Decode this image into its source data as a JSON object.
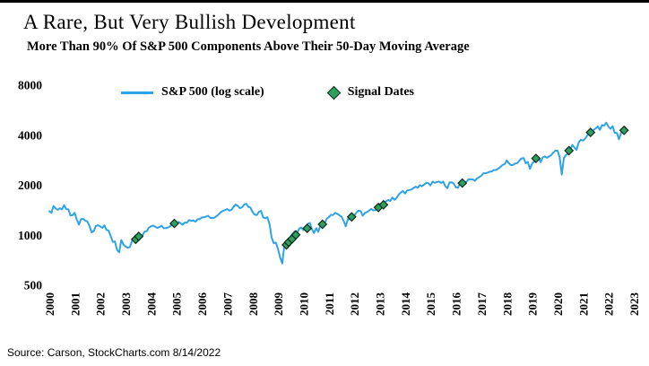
{
  "footer": {
    "source": "Source: Carson, StockCharts.com 8/14/2022"
  },
  "colors": {
    "line": "#2FA3E8",
    "signal_fill": "#2E9F5F",
    "signal_stroke": "#0a2a1a",
    "text": "#000000",
    "background": "#ffffff"
  },
  "chart_data": {
    "type": "line",
    "title": "A Rare, But Very Bullish Development",
    "subtitle": "More Than 90% Of S&P 500 Components Above Their 50-Day Moving Average",
    "y_scale": "log",
    "ylim": [
      500,
      8000
    ],
    "y_ticks": [
      8000,
      4000,
      2000,
      1000,
      500
    ],
    "xlim": [
      2000,
      2023
    ],
    "x_ticks": [
      2000,
      2001,
      2002,
      2003,
      2004,
      2005,
      2006,
      2007,
      2008,
      2009,
      2010,
      2011,
      2012,
      2013,
      2014,
      2015,
      2016,
      2017,
      2018,
      2019,
      2020,
      2021,
      2022,
      2023
    ],
    "grid": false,
    "legend_position": "top-left-inside",
    "series": [
      {
        "name": "S&P 500 (log scale)",
        "color": "#2FA3E8",
        "x_start": 2000,
        "x_step_years": 0.0833333,
        "values": [
          1394,
          1366,
          1499,
          1452,
          1421,
          1455,
          1431,
          1518,
          1437,
          1429,
          1315,
          1320,
          1366,
          1240,
          1160,
          1249,
          1256,
          1224,
          1211,
          1134,
          1041,
          1060,
          1139,
          1148,
          1130,
          1107,
          1147,
          1077,
          1067,
          990,
          911,
          916,
          815,
          790,
          936,
          880,
          856,
          841,
          848,
          917,
          964,
          975,
          990,
          1008,
          996,
          1051,
          1058,
          1112,
          1131,
          1145,
          1126,
          1107,
          1121,
          1141,
          1102,
          1104,
          1115,
          1130,
          1174,
          1212,
          1181,
          1204,
          1181,
          1157,
          1192,
          1191,
          1234,
          1220,
          1229,
          1207,
          1249,
          1248,
          1280,
          1281,
          1295,
          1311,
          1270,
          1270,
          1277,
          1304,
          1336,
          1378,
          1401,
          1418,
          1438,
          1407,
          1421,
          1482,
          1531,
          1503,
          1455,
          1474,
          1527,
          1549,
          1481,
          1468,
          1379,
          1331,
          1323,
          1386,
          1400,
          1280,
          1267,
          1283,
          1166,
          969,
          896,
          903,
          826,
          735,
          676,
          873,
          919,
          919,
          987,
          1021,
          1057,
          1036,
          1096,
          1115,
          1074,
          1104,
          1169,
          1187,
          1089,
          1031,
          1102,
          1049,
          1141,
          1183,
          1181,
          1258,
          1286,
          1327,
          1326,
          1364,
          1345,
          1321,
          1292,
          1219,
          1131,
          1253,
          1247,
          1258,
          1312,
          1366,
          1408,
          1398,
          1310,
          1362,
          1379,
          1407,
          1441,
          1412,
          1416,
          1426,
          1498,
          1515,
          1569,
          1598,
          1631,
          1606,
          1686,
          1633,
          1682,
          1757,
          1806,
          1848,
          1783,
          1859,
          1872,
          1884,
          1924,
          1960,
          1931,
          2003,
          1972,
          2018,
          2068,
          2059,
          1995,
          2105,
          2068,
          2086,
          2107,
          2063,
          2104,
          1972,
          1920,
          2079,
          2080,
          2044,
          1940,
          1932,
          2060,
          2065,
          2097,
          2099,
          2174,
          2171,
          2168,
          2126,
          2199,
          2239,
          2279,
          2364,
          2363,
          2384,
          2412,
          2423,
          2470,
          2472,
          2519,
          2575,
          2648,
          2674,
          2824,
          2714,
          2641,
          2648,
          2705,
          2718,
          2816,
          2902,
          2914,
          2712,
          2760,
          2507,
          2704,
          2784,
          2834,
          2946,
          2752,
          2942,
          2980,
          2926,
          2977,
          3038,
          3141,
          3231,
          3226,
          2954,
          2320,
          2912,
          3044,
          3100,
          3271,
          3500,
          3363,
          3270,
          3622,
          3756,
          3714,
          3811,
          3973,
          4181,
          4204,
          4298,
          4395,
          4523,
          4308,
          4605,
          4567,
          4766,
          4516,
          4374,
          4530,
          4132,
          4132,
          3785,
          4130,
          4280
        ]
      }
    ],
    "signals": {
      "name": "Signal Dates",
      "fill": "#2E9F5F",
      "stroke": "#0a2a1a",
      "points": [
        [
          2003.4,
          945
        ],
        [
          2003.52,
          985
        ],
        [
          2004.92,
          1178
        ],
        [
          2009.33,
          875
        ],
        [
          2009.42,
          908
        ],
        [
          2009.55,
          948
        ],
        [
          2009.7,
          1005
        ],
        [
          2010.15,
          1100
        ],
        [
          2010.75,
          1165
        ],
        [
          2011.9,
          1290
        ],
        [
          2012.95,
          1470
        ],
        [
          2013.15,
          1525
        ],
        [
          2016.25,
          2060
        ],
        [
          2019.15,
          2900
        ],
        [
          2020.45,
          3230
        ],
        [
          2021.3,
          4160
        ],
        [
          2022.62,
          4280
        ]
      ]
    }
  }
}
